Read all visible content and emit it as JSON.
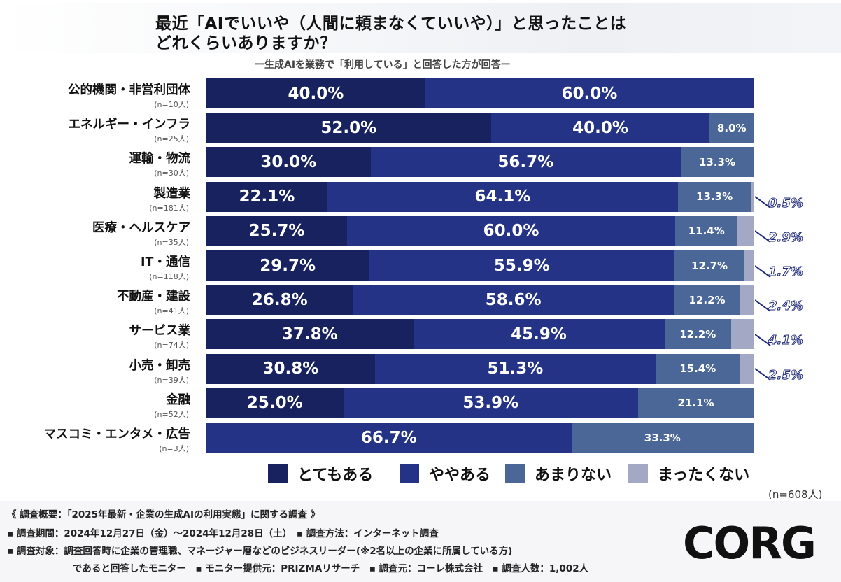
{
  "title_line1": "最近「AIでいいや（人間に頼まなくていいや）」と思ったことは",
  "title_line2": "どれくらいありますか？",
  "subtitle": "ー生成AIを業務で「利用している」と回答した方が回答ー",
  "chart_data": {
    "type": "bar",
    "orientation": "horizontal-stacked-100",
    "categories": [
      "公的機関・非営利団体",
      "エネルギー・インフラ",
      "運輸・物流",
      "製造業",
      "医療・ヘルスケア",
      "IT・通信",
      "不動産・建設",
      "サービス業",
      "小売・卸売",
      "金融",
      "マスコミ・エンタメ・広告"
    ],
    "category_n": [
      "(n=10人)",
      "(n=25人)",
      "(n=30人)",
      "(n=181人)",
      "(n=35人)",
      "(n=118人)",
      "(n=41人)",
      "(n=74人)",
      "(n=39人)",
      "(n=52人)",
      "(n=3人)"
    ],
    "series": [
      {
        "name": "とてもある",
        "color": "#17225e",
        "values": [
          40.0,
          52.0,
          30.0,
          22.1,
          25.7,
          29.7,
          26.8,
          37.8,
          30.8,
          25.0,
          0
        ]
      },
      {
        "name": "ややある",
        "color": "#243385",
        "values": [
          60.0,
          40.0,
          56.7,
          64.1,
          60.0,
          55.9,
          58.6,
          45.9,
          51.3,
          53.9,
          66.7
        ]
      },
      {
        "name": "あまりない",
        "color": "#4a6798",
        "values": [
          0,
          8.0,
          13.3,
          13.3,
          11.4,
          12.7,
          12.2,
          12.2,
          15.4,
          21.1,
          33.3
        ]
      },
      {
        "name": "まったくない",
        "color": "#a3a8c4",
        "values": [
          0,
          0,
          0,
          0.5,
          2.9,
          1.7,
          2.4,
          4.1,
          2.5,
          0,
          0
        ]
      }
    ],
    "value_labels": [
      [
        "40.0%",
        "60.0%",
        "",
        ""
      ],
      [
        "52.0%",
        "40.0%",
        "8.0%",
        ""
      ],
      [
        "30.0%",
        "56.7%",
        "13.3%",
        ""
      ],
      [
        "22.1%",
        "64.1%",
        "13.3%",
        "0.5%"
      ],
      [
        "25.7%",
        "60.0%",
        "11.4%",
        "2.9%"
      ],
      [
        "29.7%",
        "55.9%",
        "12.7%",
        "1.7%"
      ],
      [
        "26.8%",
        "58.6%",
        "12.2%",
        "2.4%"
      ],
      [
        "37.8%",
        "45.9%",
        "12.2%",
        "4.1%"
      ],
      [
        "30.8%",
        "51.3%",
        "15.4%",
        "2.5%"
      ],
      [
        "25.0%",
        "53.9%",
        "21.1%",
        ""
      ],
      [
        "",
        "66.7%",
        "33.3%",
        ""
      ]
    ],
    "xlim": [
      0,
      100
    ],
    "legend_position": "bottom",
    "total_n": "(n=608人)"
  },
  "footer": {
    "line1": "《 調査概要：「2025年最新・企業の生成AIの利用実態」に関する調査 》",
    "line2": "▪ 調査期間：2024年12月27日（金）〜2024年12月28日（土）　▪ 調査方法：インターネット調査",
    "line3": "▪ 調査対象：調査回答時に企業の管理職、マネージャー層などのビジネスリーダー(※2名以上の企業に所属している方)",
    "line4": "であると回答したモニター　▪ モニター提供元：PRIZMAリサーチ　▪ 調査元：コーレ株式会社　▪ 調査人数：1,002人"
  },
  "logo_text": "CORG"
}
